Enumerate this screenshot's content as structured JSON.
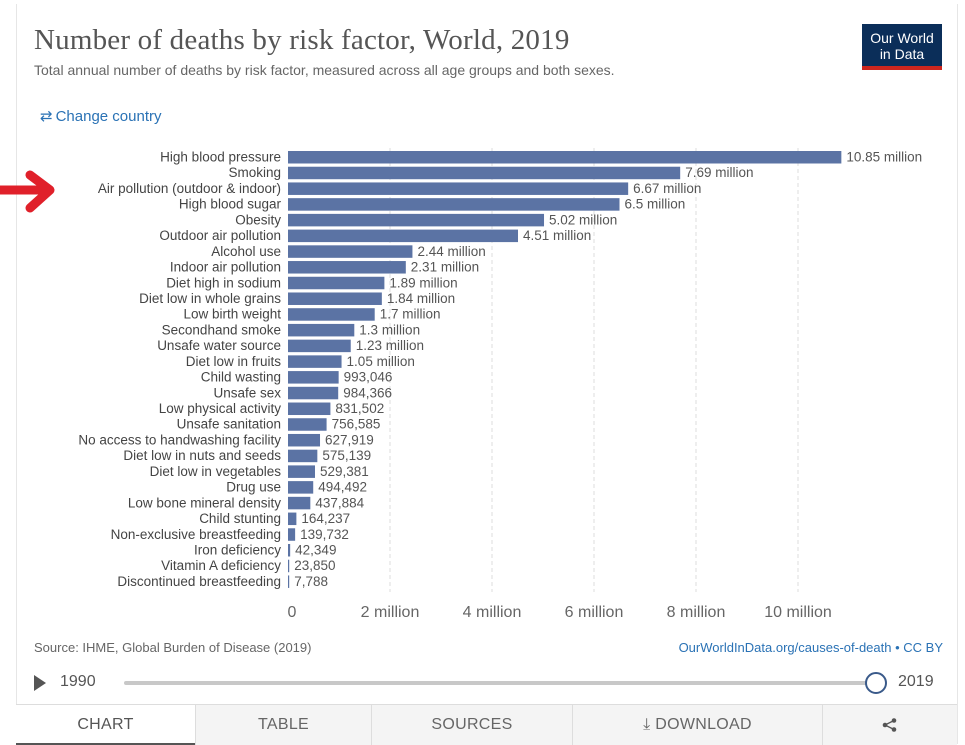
{
  "header": {
    "title": "Number of deaths by risk factor, World, 2019",
    "subtitle": "Total annual number of deaths by risk factor, measured across all age groups and both sexes.",
    "logo_line1": "Our World",
    "logo_line2": "in Data",
    "change_country": "Change country"
  },
  "chart_data": {
    "type": "bar",
    "orientation": "horizontal",
    "xlim": [
      0,
      11000000
    ],
    "grid": true,
    "bar_color": "#5b73a4",
    "x_ticks": [
      {
        "value": 0,
        "label": "0"
      },
      {
        "value": 2000000,
        "label": "2 million"
      },
      {
        "value": 4000000,
        "label": "4 million"
      },
      {
        "value": 6000000,
        "label": "6 million"
      },
      {
        "value": 8000000,
        "label": "8 million"
      },
      {
        "value": 10000000,
        "label": "10 million"
      }
    ],
    "bars": [
      {
        "category": "High blood pressure",
        "value": 10850000,
        "label": "10.85 million"
      },
      {
        "category": "Smoking",
        "value": 7690000,
        "label": "7.69 million"
      },
      {
        "category": "Air pollution (outdoor & indoor)",
        "value": 6670000,
        "label": "6.67 million"
      },
      {
        "category": "High blood sugar",
        "value": 6500000,
        "label": "6.5 million"
      },
      {
        "category": "Obesity",
        "value": 5020000,
        "label": "5.02 million"
      },
      {
        "category": "Outdoor air pollution",
        "value": 4510000,
        "label": "4.51 million"
      },
      {
        "category": "Alcohol use",
        "value": 2440000,
        "label": "2.44 million"
      },
      {
        "category": "Indoor air pollution",
        "value": 2310000,
        "label": "2.31 million"
      },
      {
        "category": "Diet high in sodium",
        "value": 1890000,
        "label": "1.89 million"
      },
      {
        "category": "Diet low in whole grains",
        "value": 1840000,
        "label": "1.84 million"
      },
      {
        "category": "Low birth weight",
        "value": 1700000,
        "label": "1.7 million"
      },
      {
        "category": "Secondhand smoke",
        "value": 1300000,
        "label": "1.3 million"
      },
      {
        "category": "Unsafe water source",
        "value": 1230000,
        "label": "1.23 million"
      },
      {
        "category": "Diet low in fruits",
        "value": 1050000,
        "label": "1.05 million"
      },
      {
        "category": "Child wasting",
        "value": 993046,
        "label": "993,046"
      },
      {
        "category": "Unsafe sex",
        "value": 984366,
        "label": "984,366"
      },
      {
        "category": "Low physical activity",
        "value": 831502,
        "label": "831,502"
      },
      {
        "category": "Unsafe sanitation",
        "value": 756585,
        "label": "756,585"
      },
      {
        "category": "No access to handwashing facility",
        "value": 627919,
        "label": "627,919"
      },
      {
        "category": "Diet low in nuts and seeds",
        "value": 575139,
        "label": "575,139"
      },
      {
        "category": "Diet low in vegetables",
        "value": 529381,
        "label": "529,381"
      },
      {
        "category": "Drug use",
        "value": 494492,
        "label": "494,492"
      },
      {
        "category": "Low bone mineral density",
        "value": 437884,
        "label": "437,884"
      },
      {
        "category": "Child stunting",
        "value": 164237,
        "label": "164,237"
      },
      {
        "category": "Non-exclusive breastfeeding",
        "value": 139732,
        "label": "139,732"
      },
      {
        "category": "Iron deficiency",
        "value": 42349,
        "label": "42,349"
      },
      {
        "category": "Vitamin A deficiency",
        "value": 23850,
        "label": "23,850"
      },
      {
        "category": "Discontinued breastfeeding",
        "value": 7788,
        "label": "7,788"
      }
    ],
    "annotation": {
      "type": "arrow",
      "color": "#e0202a",
      "points_to": "Air pollution (outdoor & indoor)"
    }
  },
  "footer": {
    "source": "Source: IHME, Global Burden of Disease (2019)",
    "link": "OurWorldInData.org/causes-of-death • CC BY"
  },
  "timeline": {
    "start_year": "1990",
    "end_year": "2019",
    "position": 1.0
  },
  "tabs": [
    {
      "label": "CHART",
      "active": true
    },
    {
      "label": "TABLE",
      "active": false
    },
    {
      "label": "SOURCES",
      "active": false
    },
    {
      "label": "DOWNLOAD",
      "active": false
    },
    {
      "label": "",
      "icon": "share-icon",
      "active": false
    }
  ]
}
